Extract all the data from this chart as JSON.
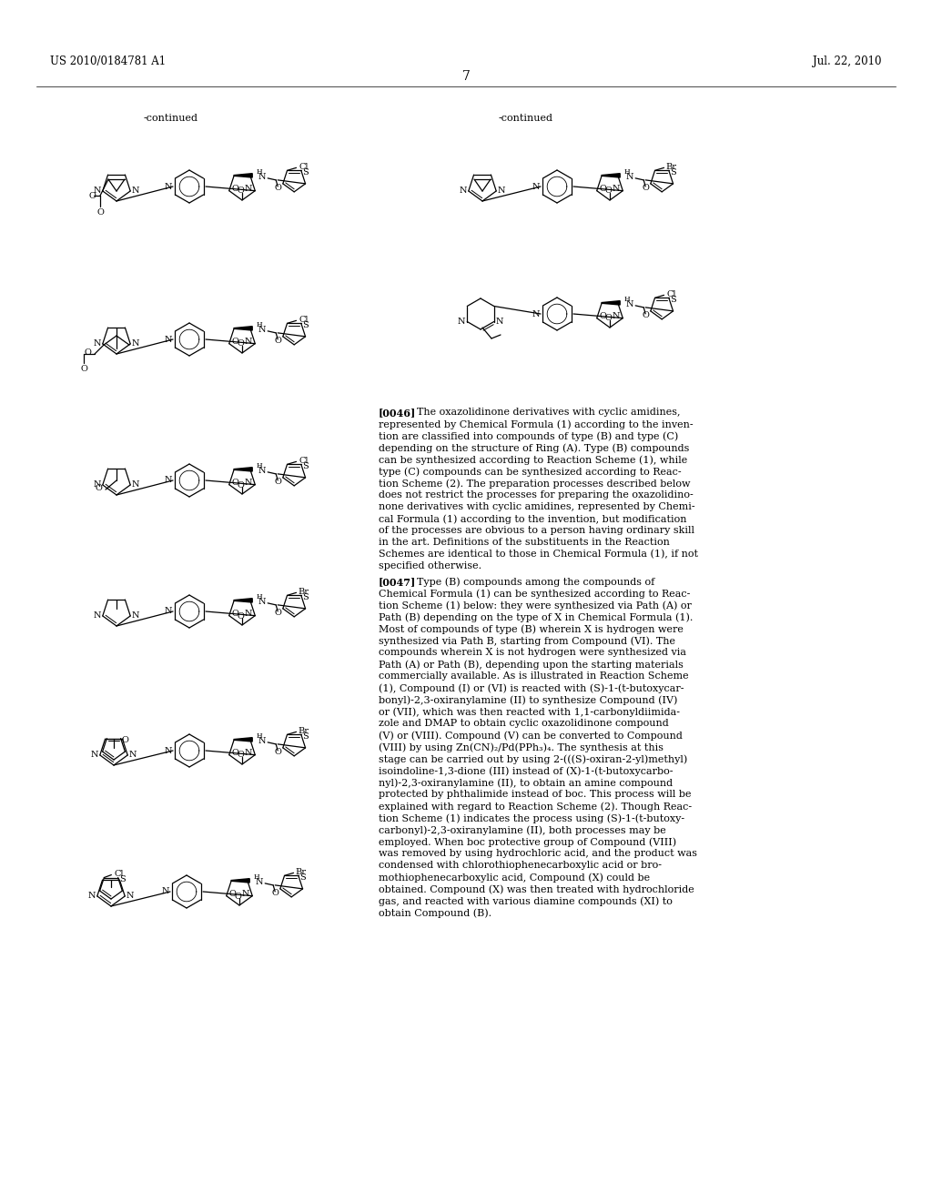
{
  "bg": "#ffffff",
  "header_left": "US 2010/0184781 A1",
  "header_right": "Jul. 22, 2010",
  "page_num": "7",
  "continued_left": "-continued",
  "continued_right": "-continued",
  "p0046": "[0046]   The oxazolidinone derivatives with cyclic amidines, represented by Chemical Formula (1) according to the invention are classified into compounds of type (B) and type (C) depending on the structure of Ring (A). Type (B) compounds can be synthesized according to Reaction Scheme (1), while type (C) compounds can be synthesized according to Reaction Scheme (2). The preparation processes described below does not restrict the processes for preparing the oxazolidinone derivatives with cyclic amidines, represented by Chemical Formula (1) according to the invention, but modification of the processes are obvious to a person having ordinary skill in the art. Definitions of the substituents in the Reaction Schemes are identical to those in Chemical Formula (1), if not specified otherwise.",
  "p0047": "[0047]   Type (B) compounds among the compounds of Chemical Formula (1) can be synthesized according to Reaction Scheme (1) below: they were synthesized via Path (A) or Path (B) depending on the type of X in Chemical Formula (1). Most of compounds of type (B) wherein X is hydrogen were synthesized via Path B, starting from Compound (VI). The compounds wherein X is not hydrogen were synthesized via Path (A) or Path (B), depending upon the starting materials commercially available. As is illustrated in Reaction Scheme (1), Compound (I) or (VI) is reacted with (S)-1-(t-butoxycarbonyl)-2,3-oxiranylamine (II) to synthesize Compound (IV) or (VII), which was then reacted with 1,1-carbonyldiimidazole and DMAP to obtain cyclic oxazolidinone compound (V) or (VIII). Compound (V) can be converted to Compound (VIII) by using Zn(CN)₂/Pd(PPh₃)₄. The synthesis at this stage can be carried out by using 2-(((S)-oxiran-2-yl)methyl)isoindoline-1,3-dione (III) instead of (X)-1-(t-butoxycarbonyl)-2,3-oxiranylamine (II), to obtain an amine compound protected by phthalimide instead of boc. This process will be explained with regard to Reaction Scheme (2). Though Reaction Scheme (1) indicates the process using (S)-1-(t-butoxycarbonyl)-2,3-oxiranylamine (II), both processes may be employed. When boc protective group of Compound (VIII) was removed by using hydrochloric acid, and the product was condensed with chlorothiophenecarboxylic acid or bromothiophenecarboxylic acid, Compound (X) could be obtained. Compound (X) was then treated with hydrochloride gas, and reacted with various diamine compounds (XI) to obtain Compound (B)."
}
